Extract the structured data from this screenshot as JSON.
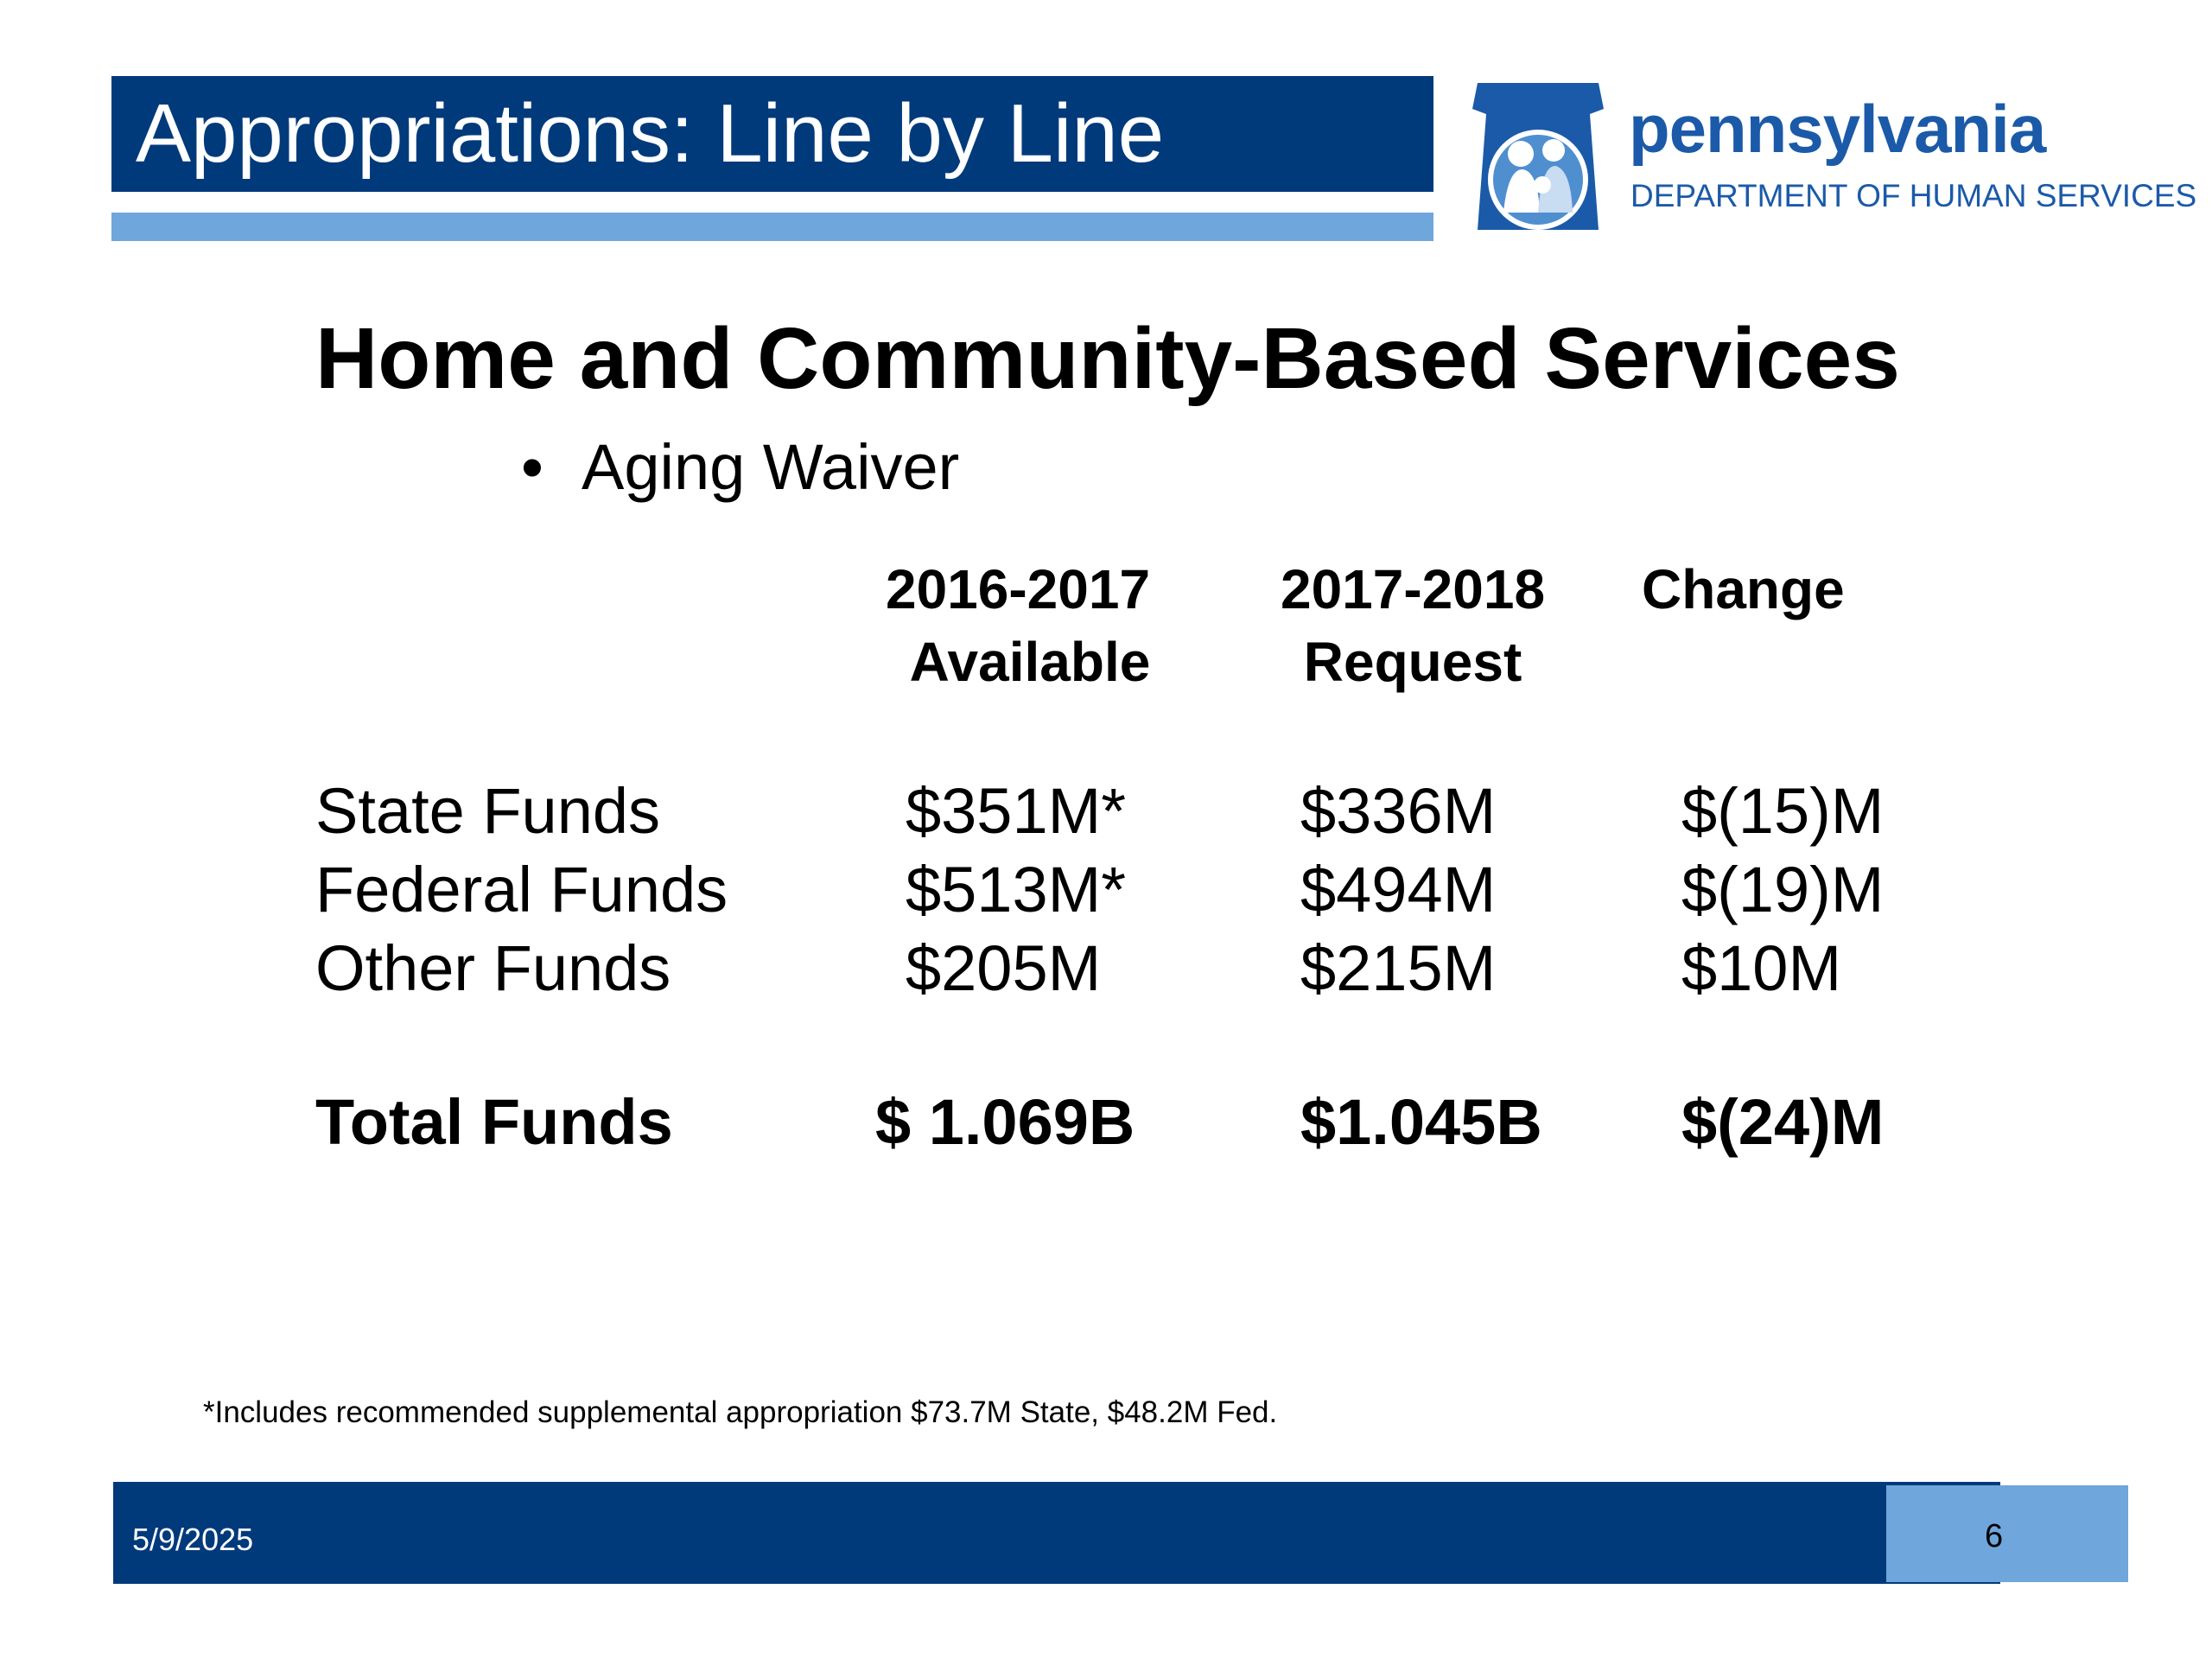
{
  "header": {
    "title": "Appropriations: Line by Line",
    "logo_word": "pennsylvania",
    "logo_sub": "DEPARTMENT OF HUMAN SERVICES"
  },
  "main": {
    "heading": "Home and Community-Based Services",
    "bullet_symbol": "•",
    "bullet": "Aging Waiver",
    "table": {
      "columns": [
        {
          "line1": "2016-2017",
          "line2": "Available"
        },
        {
          "line1": "2017-2018",
          "line2": "Request"
        },
        {
          "line1": "Change",
          "line2": ""
        }
      ],
      "rows": [
        {
          "label": "State Funds",
          "cells": [
            "$351M*",
            "$336M",
            "$(15)M"
          ]
        },
        {
          "label": "Federal Funds",
          "cells": [
            "$513M*",
            "$494M",
            "$(19)M"
          ]
        },
        {
          "label": "Other Funds",
          "cells": [
            "$205M",
            "$215M",
            "$10M"
          ]
        }
      ],
      "total": {
        "label": "Total Funds",
        "cells": [
          "$ 1.069B",
          "$1.045B",
          "$(24)M"
        ]
      }
    },
    "footnote": "*Includes recommended supplemental appropriation $73.7M State, $48.2M Fed."
  },
  "footer": {
    "date": "5/9/2025",
    "page": "6"
  },
  "colors": {
    "navy": "#013a7b",
    "light_blue": "#6fa6dc",
    "logo_blue": "#1b5aa8"
  }
}
